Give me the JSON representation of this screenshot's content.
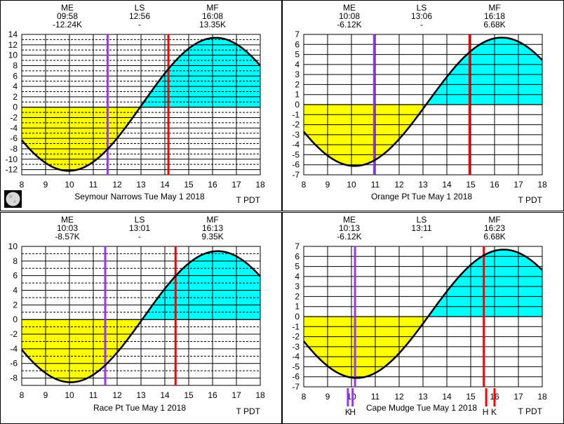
{
  "colors": {
    "flood": "#00ffff",
    "ebb": "#ffff00",
    "purple_line": "#9933ff",
    "red_line": "#ff0000",
    "curve": "#000000"
  },
  "chart_data": [
    {
      "type": "area",
      "title": "Seymour Narrows Tue May 1 2018",
      "time_label": "T PDT",
      "moon_icon": "moon-phase-icon",
      "events": [
        {
          "name": "ME",
          "time": "09:58",
          "value": "-12.24K"
        },
        {
          "name": "LS",
          "time": "12:56",
          "value": "-"
        },
        {
          "name": "MF",
          "time": "16:08",
          "value": "13.35K"
        }
      ],
      "xlim": [
        8,
        18
      ],
      "ylim": [
        -13,
        14
      ],
      "x_ticks": [
        "8",
        "9",
        "10",
        "11",
        "12",
        "13",
        "14",
        "15",
        "16",
        "17",
        "18"
      ],
      "y_ticks": [
        14,
        12,
        10,
        8,
        6,
        4,
        2,
        0,
        -2,
        -4,
        -6,
        -8,
        -10,
        -12
      ],
      "curve": {
        "t_min": 9.967,
        "v_min": -12.24,
        "t_max": 16.133,
        "v_max": 13.35
      },
      "lines": [
        {
          "color": "purple",
          "x": 11.6
        },
        {
          "color": "red",
          "x": 14.15
        }
      ],
      "markers": []
    },
    {
      "type": "area",
      "title": "Orange Pt Tue May 1 2018",
      "time_label": "T PDT",
      "events": [
        {
          "name": "ME",
          "time": "10:08",
          "value": "-6.12K"
        },
        {
          "name": "LS",
          "time": "13:06",
          "value": "-"
        },
        {
          "name": "MF",
          "time": "16:18",
          "value": "6.68K"
        }
      ],
      "xlim": [
        8,
        18
      ],
      "ylim": [
        -7,
        7
      ],
      "x_ticks": [
        "8",
        "9",
        "10",
        "11",
        "12",
        "13",
        "14",
        "15",
        "16",
        "17",
        "18"
      ],
      "y_ticks": [
        7,
        6,
        5,
        4,
        3,
        2,
        1,
        0,
        -1,
        -2,
        -3,
        -4,
        -5,
        -6,
        -7
      ],
      "curve": {
        "t_min": 10.133,
        "v_min": -6.12,
        "t_max": 16.3,
        "v_max": 6.68
      },
      "lines": [
        {
          "color": "purple",
          "x": 10.95
        },
        {
          "color": "red",
          "x": 14.95
        }
      ],
      "markers": []
    },
    {
      "type": "area",
      "title": "Race Pt Tue May 1 2018",
      "time_label": "T PDT",
      "events": [
        {
          "name": "ME",
          "time": "10:03",
          "value": "-8.57K"
        },
        {
          "name": "LS",
          "time": "13:01",
          "value": "-"
        },
        {
          "name": "MF",
          "time": "16:13",
          "value": "9.35K"
        }
      ],
      "xlim": [
        8,
        18
      ],
      "ylim": [
        -9,
        10
      ],
      "x_ticks": [
        "8",
        "9",
        "10",
        "11",
        "12",
        "13",
        "14",
        "15",
        "16",
        "17",
        "18"
      ],
      "y_ticks": [
        10,
        8,
        6,
        4,
        2,
        0,
        -2,
        -4,
        -6,
        -8
      ],
      "curve": {
        "t_min": 10.05,
        "v_min": -8.57,
        "t_max": 16.217,
        "v_max": 9.35
      },
      "lines": [
        {
          "color": "purple",
          "x": 11.5
        },
        {
          "color": "red",
          "x": 14.45
        }
      ],
      "markers": []
    },
    {
      "type": "area",
      "title": "Cape Mudge Tue May 1 2018",
      "time_label": "T PDT",
      "events": [
        {
          "name": "ME",
          "time": "10:13",
          "value": "-6.12K"
        },
        {
          "name": "LS",
          "time": "13:11",
          "value": "-"
        },
        {
          "name": "MF",
          "time": "16:23",
          "value": "6.68K"
        }
      ],
      "xlim": [
        8,
        18
      ],
      "ylim": [
        -7,
        7
      ],
      "x_ticks": [
        "8",
        "9",
        "10",
        "11",
        "12",
        "13",
        "14",
        "15",
        "16",
        "17",
        "18"
      ],
      "y_ticks": [
        7,
        6,
        5,
        4,
        3,
        2,
        1,
        0,
        -1,
        -2,
        -3,
        -4,
        -5,
        -6,
        -7
      ],
      "curve": {
        "t_min": 10.217,
        "v_min": -6.12,
        "t_max": 16.383,
        "v_max": 6.68
      },
      "lines": [
        {
          "color": "purple",
          "x": 10.15
        },
        {
          "color": "red",
          "x": 15.55
        }
      ],
      "markers": [
        {
          "label": "K",
          "color": "purple",
          "x": 9.85
        },
        {
          "label": "H",
          "color": "purple",
          "x": 10.05
        },
        {
          "label": "H",
          "color": "red",
          "x": 15.65
        },
        {
          "label": "K",
          "color": "red",
          "x": 16.0
        }
      ]
    }
  ]
}
